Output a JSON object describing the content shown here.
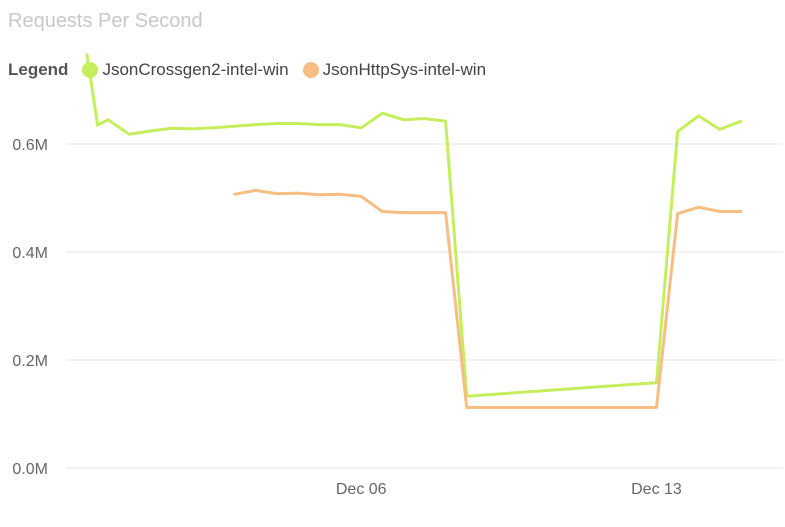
{
  "chart_data": {
    "type": "line",
    "title": "Requests Per Second",
    "legend_title": "Legend",
    "legend_position": "top-left",
    "grid": true,
    "ylim": [
      0,
      700000
    ],
    "yticks": [
      {
        "value": 0,
        "label": "0.0M"
      },
      {
        "value": 200000,
        "label": "0.2M"
      },
      {
        "value": 400000,
        "label": "0.4M"
      },
      {
        "value": 600000,
        "label": "0.6M"
      }
    ],
    "xlim": [
      "2020-11-29",
      "2020-12-16"
    ],
    "xticks": [
      {
        "value": "2020-12-06",
        "label": "Dec 06"
      },
      {
        "value": "2020-12-13",
        "label": "Dec 13"
      }
    ],
    "series": [
      {
        "name": "JsonCrossgen2-intel-win",
        "color": "#c5ee5c",
        "points": [
          [
            "2020-11-29T12:00",
            765000
          ],
          [
            "2020-11-29T18:00",
            635000
          ],
          [
            "2020-11-30T00:00",
            645000
          ],
          [
            "2020-11-30T12:00",
            618000
          ],
          [
            "2020-12-01T00:00",
            624000
          ],
          [
            "2020-12-01T12:00",
            629000
          ],
          [
            "2020-12-02T00:00",
            628000
          ],
          [
            "2020-12-02T12:00",
            630000
          ],
          [
            "2020-12-03T00:00",
            633000
          ],
          [
            "2020-12-03T12:00",
            636000
          ],
          [
            "2020-12-04T00:00",
            638000
          ],
          [
            "2020-12-04T12:00",
            638000
          ],
          [
            "2020-12-05T00:00",
            636000
          ],
          [
            "2020-12-05T12:00",
            636000
          ],
          [
            "2020-12-06T00:00",
            630000
          ],
          [
            "2020-12-06T12:00",
            657000
          ],
          [
            "2020-12-07T00:00",
            645000
          ],
          [
            "2020-12-07T12:00",
            647000
          ],
          [
            "2020-12-08T00:00",
            642000
          ],
          [
            "2020-12-08T12:00",
            133000
          ],
          [
            "2020-12-13T00:00",
            158000
          ],
          [
            "2020-12-13T12:00",
            623000
          ],
          [
            "2020-12-14T00:00",
            652000
          ],
          [
            "2020-12-14T12:00",
            627000
          ],
          [
            "2020-12-15T00:00",
            642000
          ]
        ]
      },
      {
        "name": "JsonHttpSys-intel-win",
        "color": "#f6bd84",
        "points": [
          [
            "2020-12-03T00:00",
            507000
          ],
          [
            "2020-12-03T12:00",
            514000
          ],
          [
            "2020-12-04T00:00",
            508000
          ],
          [
            "2020-12-04T12:00",
            509000
          ],
          [
            "2020-12-05T00:00",
            506000
          ],
          [
            "2020-12-05T12:00",
            507000
          ],
          [
            "2020-12-06T00:00",
            503000
          ],
          [
            "2020-12-06T12:00",
            475000
          ],
          [
            "2020-12-07T00:00",
            473000
          ],
          [
            "2020-12-07T12:00",
            473000
          ],
          [
            "2020-12-08T00:00",
            473000
          ],
          [
            "2020-12-08T12:00",
            112000
          ],
          [
            "2020-12-12T12:00",
            112000
          ],
          [
            "2020-12-13T00:00",
            112000
          ],
          [
            "2020-12-13T12:00",
            471000
          ],
          [
            "2020-12-14T00:00",
            483000
          ],
          [
            "2020-12-14T12:00",
            475000
          ],
          [
            "2020-12-15T00:00",
            475000
          ]
        ]
      }
    ]
  }
}
